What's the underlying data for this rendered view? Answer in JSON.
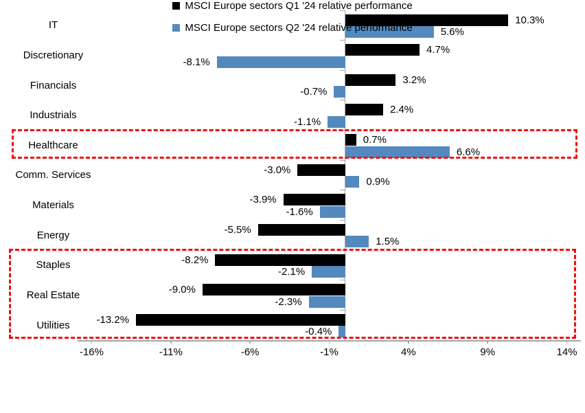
{
  "chart_data": {
    "type": "bar",
    "orientation": "horizontal",
    "title": "",
    "categories": [
      "IT",
      "Discretionary",
      "Financials",
      "Industrials",
      "Healthcare",
      "Comm. Services",
      "Materials",
      "Energy",
      "Staples",
      "Real Estate",
      "Utilities"
    ],
    "series": [
      {
        "name": "MSCI Europe sectors Q1 '24 relative performance",
        "color": "#000000",
        "values": [
          10.3,
          4.7,
          3.2,
          2.4,
          0.7,
          -3.0,
          -3.9,
          -5.5,
          -8.2,
          -9.0,
          -13.2
        ],
        "labels": [
          "10.3%",
          "4.7%",
          "3.2%",
          "2.4%",
          "0.7%",
          "-3.0%",
          "-3.9%",
          "-5.5%",
          "-8.2%",
          "-9.0%",
          "-13.2%"
        ]
      },
      {
        "name": "MSCI Europe sectors Q2 '24 relative performance",
        "color": "#5389be",
        "values": [
          5.6,
          -8.1,
          -0.7,
          -1.1,
          6.6,
          0.9,
          -1.6,
          1.5,
          -2.1,
          -2.3,
          -0.4
        ],
        "labels": [
          "5.6%",
          "-8.1%",
          "-0.7%",
          "-1.1%",
          "6.6%",
          "0.9%",
          "-1.6%",
          "1.5%",
          "-2.1%",
          "-2.3%",
          "-0.4%"
        ]
      }
    ],
    "x_axis": {
      "tick_labels": [
        "-16%",
        "-11%",
        "-6%",
        "-1%",
        "4%",
        "9%",
        "14%"
      ],
      "tick_values": [
        -16,
        -11,
        -6,
        -1,
        4,
        9,
        14
      ],
      "range": [
        -16.9,
        14.9
      ]
    },
    "ylabel": "",
    "xlabel": "",
    "grid": false,
    "legend_position": "bottom",
    "data_label_format": "0.0%",
    "highlight_boxes": [
      {
        "name": "healthcare-highlight",
        "from_category": "Healthcare",
        "to_category": "Healthcare",
        "color": "#f20d0d"
      },
      {
        "name": "staples-realestate-utilities-highlight",
        "from_category": "Staples",
        "to_category": "Utilities",
        "color": "#f20d0d"
      }
    ]
  },
  "colors": {
    "q1_bar": "#000000",
    "q2_bar": "#5389be",
    "highlight_red": "#f20d0d",
    "axis_gray": "#a6a6a6",
    "text": "#000000",
    "background": "#ffffff"
  }
}
